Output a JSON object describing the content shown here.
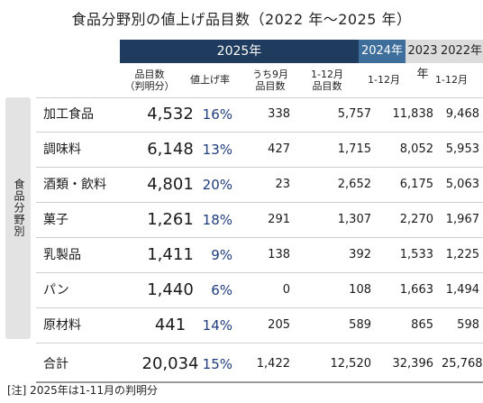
{
  "title": "食品分野別の値上げ品目数（2022 年～2025 年）",
  "header": {
    "year_2025": "2025年",
    "year_2024": "2024年",
    "year_2023": "2023年",
    "year_2022": "2022年"
  },
  "subheaders": {
    "count": "品目数（判明分）",
    "count_line1": "品目数",
    "count_line2": "（判明分）",
    "rate": "値上げ率",
    "sep_line1": "うち9月",
    "sep_line2": "品目数",
    "y24_line1": "1-12月",
    "y24_line2": "品目数",
    "y23": "1-12月",
    "y22": "1-12月"
  },
  "side_label": "食品分野別",
  "rows": [
    {
      "name": "加工食品",
      "count": "4,532",
      "rate": "16%",
      "sep": "338",
      "y2024": "5,757",
      "y2023": "11,838",
      "y2022": "9,468"
    },
    {
      "name": "調味料",
      "count": "6,148",
      "rate": "13%",
      "sep": "427",
      "y2024": "1,715",
      "y2023": "8,052",
      "y2022": "5,953"
    },
    {
      "name": "酒類・飲料",
      "count": "4,801",
      "rate": "20%",
      "sep": "23",
      "y2024": "2,652",
      "y2023": "6,175",
      "y2022": "5,063"
    },
    {
      "name": "菓子",
      "count": "1,261",
      "rate": "18%",
      "sep": "291",
      "y2024": "1,307",
      "y2023": "2,270",
      "y2022": "1,967"
    },
    {
      "name": "乳製品",
      "count": "1,411",
      "rate": "9%",
      "sep": "138",
      "y2024": "392",
      "y2023": "1,533",
      "y2022": "1,225"
    },
    {
      "name": "パン",
      "count": "1,440",
      "rate": "6%",
      "sep": "0",
      "y2024": "108",
      "y2023": "1,663",
      "y2022": "1,494"
    },
    {
      "name": "原材料",
      "count": "441",
      "rate": "14%",
      "sep": "205",
      "y2024": "589",
      "y2023": "865",
      "y2022": "598"
    }
  ],
  "total": {
    "name": "合計",
    "count": "20,034",
    "rate": "15%",
    "sep": "1,422",
    "y2024": "12,520",
    "y2023": "32,396",
    "y2022": "25,768"
  },
  "note": "[注] 2025年は1-11月の判明分"
}
